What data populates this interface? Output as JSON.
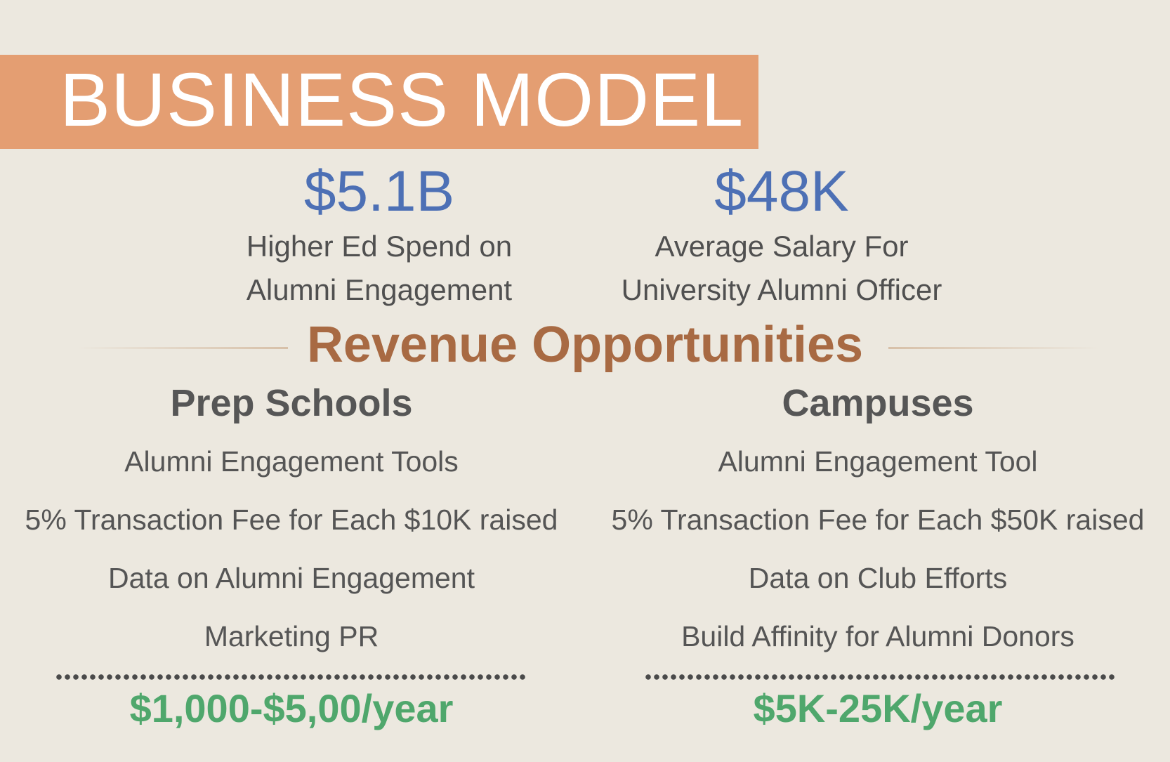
{
  "header": {
    "title": "BUSINESS MODEL"
  },
  "stats": [
    {
      "value": "$5.1B",
      "line1": "Higher Ed Spend on",
      "line2": "Alumni Engagement"
    },
    {
      "value": "$48K",
      "line1": "Average Salary For",
      "line2": "University Alumni Officer"
    }
  ],
  "revenue": {
    "title": "Revenue Opportunities",
    "columns": [
      {
        "heading": "Prep Schools",
        "items": [
          "Alumni Engagement Tools",
          "5% Transaction Fee for Each $10K raised",
          "Data on Alumni Engagement",
          "Marketing PR"
        ],
        "price": "$1,000-$5,00/year"
      },
      {
        "heading": "Campuses",
        "items": [
          "Alumni Engagement Tool",
          "5% Transaction Fee for Each $50K raised",
          "Data on Club Efforts",
          "Build Affinity for Alumni Donors"
        ],
        "price": "$5K-25K/year"
      }
    ]
  },
  "colors": {
    "background": "#ece8df",
    "title_band": "#e49e72",
    "stat_value": "#4d70b5",
    "section_title": "#a86a43",
    "price": "#4fa76c"
  }
}
